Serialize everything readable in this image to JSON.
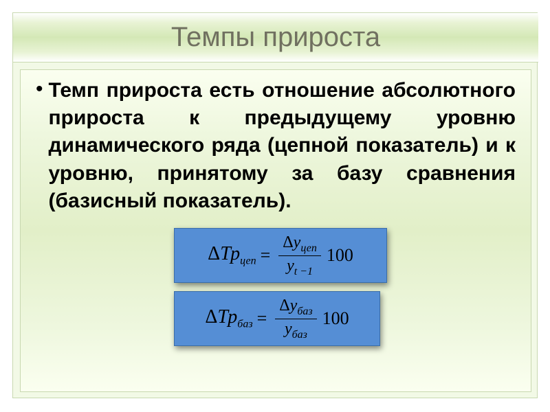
{
  "slide": {
    "title": "Темпы прироста",
    "bullet": "•",
    "body": "Темп прироста есть отношение абсолютного прироста к предыдущему уровню динамического ряда (цепной показатель) и к уровню, принятому за базу сравнения (базисный показатель).",
    "formula1": {
      "lhs_delta": "Δ",
      "lhs_var": "Тр",
      "lhs_sub": "цеп",
      "eq": "=",
      "num_delta": "Δ",
      "num_var": "у",
      "num_sub": "цеп",
      "den_var": "у",
      "den_sub": "t −1",
      "mult": "100"
    },
    "formula2": {
      "lhs_delta": "Δ",
      "lhs_var": "Тр",
      "lhs_sub": "баз",
      "eq": "=",
      "num_delta": "Δ",
      "num_var": "у",
      "num_sub": "баз",
      "den_var": "у",
      "den_sub": "баз",
      "mult": "100"
    }
  },
  "style": {
    "title_color": "#707060",
    "title_fontsize": 40,
    "body_color": "#000000",
    "body_fontsize": 30,
    "body_fontweight": "bold",
    "slide_bg": "#f2f9e6",
    "titlebar_gradient": [
      "#ffffff",
      "#e8f3d4",
      "#d4e8b6",
      "#e8f3d4",
      "#ffffff"
    ],
    "content_gradient": [
      "#fbfff0",
      "#eef7de",
      "#e2efc8",
      "#eef7de",
      "#fbfff0"
    ],
    "formula_bg": "#558ed5",
    "formula_border": "#3a6da8",
    "formula_shadow": "rgba(0,0,0,0.45)",
    "formula_font": "Times New Roman"
  }
}
